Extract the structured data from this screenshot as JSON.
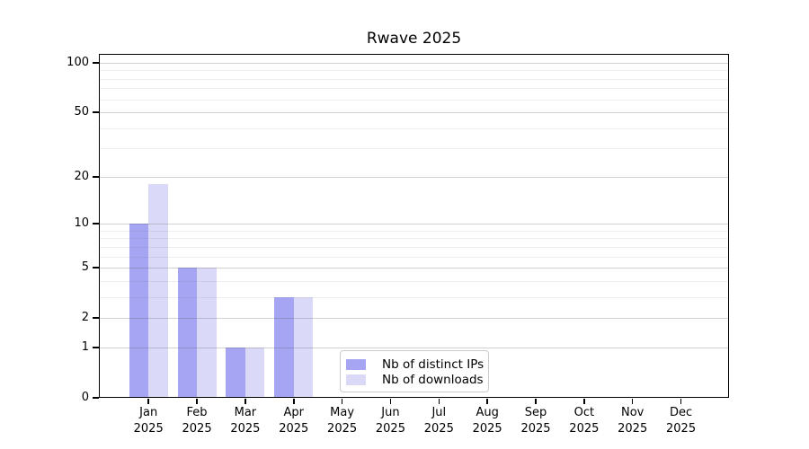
{
  "chart_data": {
    "type": "bar",
    "title": "Rwave 2025",
    "categories": [
      "Jan 2025",
      "Feb 2025",
      "Mar 2025",
      "Apr 2025",
      "May 2025",
      "Jun 2025",
      "Jul 2025",
      "Aug 2025",
      "Sep 2025",
      "Oct 2025",
      "Nov 2025",
      "Dec 2025"
    ],
    "series": [
      {
        "name": "Nb of distinct IPs",
        "color": "#a5a5f4",
        "values": [
          10,
          5,
          1,
          3,
          0,
          0,
          0,
          0,
          0,
          0,
          0,
          0
        ]
      },
      {
        "name": "Nb of downloads",
        "color": "#dadaf8",
        "values": [
          18,
          5,
          1,
          3,
          0,
          0,
          0,
          0,
          0,
          0,
          0,
          0
        ]
      }
    ],
    "xlabel": "",
    "ylabel": "",
    "ylim": [
      0,
      100
    ],
    "yscale": "log1p",
    "yticks": [
      0,
      1,
      2,
      5,
      10,
      20,
      50,
      100
    ],
    "minor_gridlines": [
      3,
      4,
      6,
      7,
      8,
      9,
      30,
      40,
      60,
      70,
      80,
      90
    ],
    "grid": true,
    "grid_over_bars": true,
    "legend_position": "lower center",
    "text_color": "#000000",
    "background_color": "#ffffff"
  }
}
